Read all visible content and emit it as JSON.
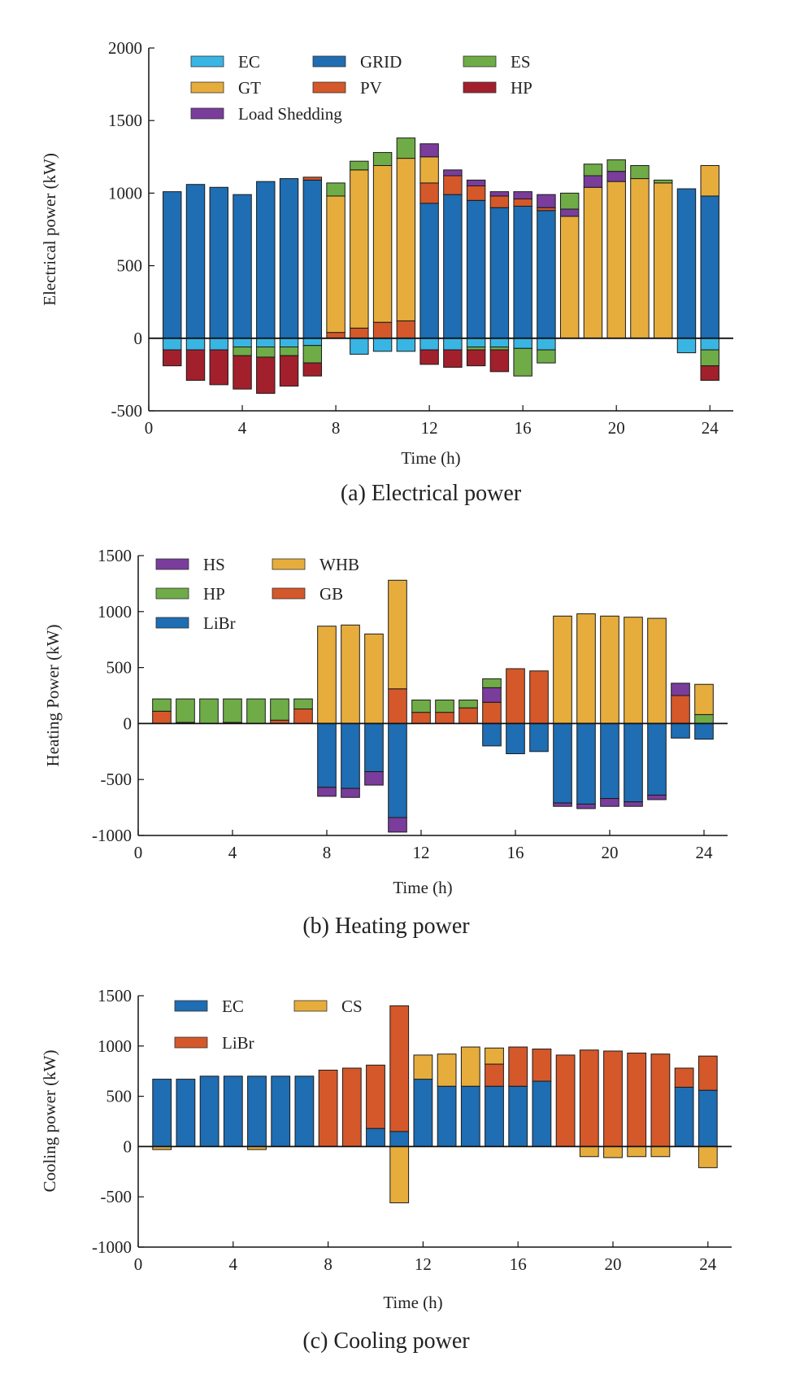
{
  "colors": {
    "EC": "#39b5e4",
    "GRID": "#1f6db2",
    "ES": "#6fac47",
    "GT": "#e7ad3c",
    "PV": "#d4582a",
    "HP": "#a2202c",
    "LS": "#7a3d9b",
    "HS": "#7a3d9b",
    "HPh": "#6fac47",
    "LiBr_h": "#1f6db2",
    "WHB": "#e7ad3c",
    "GB": "#d4582a",
    "EC_c": "#1f6db2",
    "LiBr_c": "#d4582a",
    "CS": "#e7ad3c"
  },
  "chart_data": [
    {
      "id": "electrical",
      "type": "bar",
      "stacked": true,
      "caption": "(a) Electrical power",
      "xlabel": "Time (h)",
      "ylabel": "Electrical power (kW)",
      "xlim": [
        0,
        25
      ],
      "ylim": [
        -500,
        2000
      ],
      "xticks": [
        0,
        4,
        8,
        12,
        16,
        20,
        24
      ],
      "yticks": [
        -500,
        0,
        500,
        1000,
        1500,
        2000
      ],
      "ytick_labels": [
        "-500",
        "0",
        "500",
        "1000",
        "1500",
        "2000"
      ],
      "x": [
        1,
        2,
        3,
        4,
        5,
        6,
        7,
        8,
        9,
        10,
        11,
        12,
        13,
        14,
        15,
        16,
        17,
        18,
        19,
        20,
        21,
        22,
        23,
        24
      ],
      "legend": [
        {
          "key": "EC",
          "label": "EC"
        },
        {
          "key": "GRID",
          "label": "GRID"
        },
        {
          "key": "ES",
          "label": "ES"
        },
        {
          "key": "GT",
          "label": "GT"
        },
        {
          "key": "PV",
          "label": "PV"
        },
        {
          "key": "HP",
          "label": "HP"
        },
        {
          "key": "LS",
          "label": "Load Shedding"
        }
      ],
      "series": [
        {
          "key": "GRID",
          "name": "GRID",
          "values": [
            1010,
            1060,
            1040,
            990,
            1080,
            1100,
            1090,
            0,
            0,
            0,
            0,
            930,
            990,
            950,
            900,
            910,
            880,
            0,
            0,
            0,
            0,
            0,
            1030,
            980
          ]
        },
        {
          "key": "PV",
          "name": "PV",
          "values": [
            0,
            0,
            0,
            0,
            0,
            0,
            20,
            40,
            70,
            110,
            120,
            140,
            130,
            100,
            80,
            50,
            20,
            0,
            0,
            0,
            0,
            0,
            0,
            0
          ]
        },
        {
          "key": "GT",
          "name": "GT",
          "values": [
            0,
            0,
            0,
            0,
            0,
            0,
            0,
            940,
            1090,
            1080,
            1120,
            180,
            0,
            0,
            0,
            0,
            0,
            840,
            1040,
            1080,
            1100,
            1070,
            0,
            210
          ]
        },
        {
          "key": "LS",
          "name": "Load Shedding",
          "values": [
            0,
            0,
            0,
            0,
            0,
            0,
            0,
            0,
            0,
            0,
            0,
            90,
            40,
            40,
            30,
            50,
            90,
            50,
            80,
            70,
            0,
            0,
            0,
            0
          ]
        },
        {
          "key": "ES",
          "name": "ES",
          "values": [
            0,
            0,
            0,
            0,
            0,
            0,
            0,
            90,
            60,
            90,
            140,
            0,
            0,
            0,
            0,
            0,
            0,
            110,
            80,
            80,
            90,
            20,
            0,
            0
          ]
        },
        {
          "key": "EC",
          "name": "EC",
          "values": [
            -80,
            -80,
            -80,
            -60,
            -60,
            -60,
            -50,
            0,
            -110,
            -90,
            -90,
            -80,
            -80,
            -60,
            -60,
            -70,
            -80,
            0,
            0,
            0,
            0,
            0,
            -100,
            -80
          ]
        },
        {
          "key": "ES",
          "name": "ES",
          "values": [
            0,
            0,
            0,
            -60,
            -70,
            -60,
            -120,
            0,
            0,
            0,
            0,
            0,
            0,
            -20,
            -20,
            -190,
            -90,
            0,
            0,
            0,
            0,
            0,
            0,
            -110
          ]
        },
        {
          "key": "HP",
          "name": "HP",
          "values": [
            -110,
            -210,
            -240,
            -230,
            -250,
            -210,
            -90,
            0,
            0,
            0,
            0,
            -100,
            -120,
            -110,
            -150,
            0,
            0,
            0,
            0,
            0,
            0,
            0,
            0,
            -100
          ]
        }
      ]
    },
    {
      "id": "heating",
      "type": "bar",
      "stacked": true,
      "caption": "(b) Heating power",
      "xlabel": "Time (h)",
      "ylabel": "Heating Power (kW)",
      "xlim": [
        0,
        25
      ],
      "ylim": [
        -1000,
        1500
      ],
      "xticks": [
        0,
        4,
        8,
        12,
        16,
        20,
        24
      ],
      "yticks": [
        -1000,
        -500,
        0,
        500,
        1000,
        1500
      ],
      "ytick_labels": [
        "-1000",
        "-500",
        "0",
        "500",
        "1000",
        "1500"
      ],
      "x": [
        1,
        2,
        3,
        4,
        5,
        6,
        7,
        8,
        9,
        10,
        11,
        12,
        13,
        14,
        15,
        16,
        17,
        18,
        19,
        20,
        21,
        22,
        23,
        24
      ],
      "legend": [
        {
          "key": "HS",
          "label": "HS"
        },
        {
          "key": "WHB",
          "label": "WHB"
        },
        {
          "key": "HPh",
          "label": "HP"
        },
        {
          "key": "GB",
          "label": "GB"
        },
        {
          "key": "LiBr_h",
          "label": "LiBr"
        }
      ],
      "series": [
        {
          "key": "GB",
          "name": "GB",
          "values": [
            110,
            10,
            0,
            10,
            0,
            30,
            130,
            0,
            0,
            0,
            310,
            100,
            100,
            140,
            190,
            490,
            470,
            0,
            0,
            0,
            0,
            0,
            250,
            0
          ]
        },
        {
          "key": "HS",
          "name": "HS",
          "values": [
            0,
            0,
            0,
            0,
            0,
            0,
            0,
            0,
            0,
            0,
            0,
            0,
            0,
            0,
            130,
            0,
            0,
            0,
            0,
            0,
            0,
            0,
            110,
            0
          ]
        },
        {
          "key": "HPh",
          "name": "HP",
          "values": [
            110,
            210,
            220,
            210,
            220,
            190,
            90,
            0,
            0,
            0,
            0,
            110,
            110,
            70,
            80,
            0,
            0,
            0,
            0,
            0,
            0,
            0,
            0,
            80
          ]
        },
        {
          "key": "WHB",
          "name": "WHB",
          "values": [
            0,
            0,
            0,
            0,
            0,
            0,
            0,
            870,
            880,
            800,
            970,
            0,
            0,
            0,
            0,
            0,
            0,
            960,
            980,
            960,
            950,
            940,
            0,
            270
          ]
        },
        {
          "key": "LiBr_h",
          "name": "LiBr",
          "values": [
            0,
            0,
            0,
            0,
            0,
            0,
            0,
            -570,
            -580,
            -430,
            -840,
            0,
            0,
            0,
            -200,
            -270,
            -250,
            -710,
            -720,
            -670,
            -700,
            -640,
            -130,
            -140
          ]
        },
        {
          "key": "HS",
          "name": "HS",
          "values": [
            0,
            0,
            0,
            0,
            0,
            0,
            0,
            -80,
            -80,
            -120,
            -130,
            0,
            0,
            0,
            0,
            0,
            0,
            -30,
            -40,
            -70,
            -40,
            -40,
            0,
            0
          ]
        }
      ]
    },
    {
      "id": "cooling",
      "type": "bar",
      "stacked": true,
      "caption": "(c) Cooling power",
      "xlabel": "Time (h)",
      "ylabel": "Cooling power (kW)",
      "xlim": [
        0,
        25
      ],
      "ylim": [
        -1000,
        1500
      ],
      "xticks": [
        0,
        4,
        8,
        12,
        16,
        20,
        24
      ],
      "yticks": [
        -1000,
        -500,
        0,
        500,
        1000,
        1500
      ],
      "ytick_labels": [
        "-1000",
        "-500",
        "0",
        "500",
        "1000",
        "1500"
      ],
      "x": [
        1,
        2,
        3,
        4,
        5,
        6,
        7,
        8,
        9,
        10,
        11,
        12,
        13,
        14,
        15,
        16,
        17,
        18,
        19,
        20,
        21,
        22,
        23,
        24
      ],
      "legend": [
        {
          "key": "EC_c",
          "label": "EC"
        },
        {
          "key": "CS",
          "label": "CS"
        },
        {
          "key": "LiBr_c",
          "label": "LiBr"
        }
      ],
      "series": [
        {
          "key": "EC_c",
          "name": "EC",
          "values": [
            670,
            670,
            700,
            700,
            700,
            700,
            700,
            0,
            0,
            180,
            150,
            670,
            600,
            600,
            600,
            600,
            650,
            0,
            0,
            0,
            0,
            0,
            590,
            560
          ]
        },
        {
          "key": "LiBr_c",
          "name": "LiBr",
          "values": [
            0,
            0,
            0,
            0,
            0,
            0,
            0,
            760,
            780,
            630,
            1250,
            0,
            0,
            0,
            220,
            390,
            320,
            910,
            960,
            950,
            930,
            920,
            190,
            340
          ]
        },
        {
          "key": "CS",
          "name": "CS",
          "values": [
            0,
            0,
            0,
            0,
            0,
            0,
            0,
            0,
            0,
            0,
            0,
            240,
            320,
            390,
            160,
            0,
            0,
            0,
            0,
            0,
            0,
            0,
            0,
            0
          ]
        },
        {
          "key": "CS",
          "name": "CS",
          "values": [
            -30,
            0,
            0,
            0,
            -30,
            0,
            0,
            0,
            0,
            0,
            -560,
            0,
            0,
            0,
            0,
            0,
            0,
            0,
            -100,
            -110,
            -100,
            -100,
            0,
            -210
          ]
        }
      ]
    }
  ]
}
